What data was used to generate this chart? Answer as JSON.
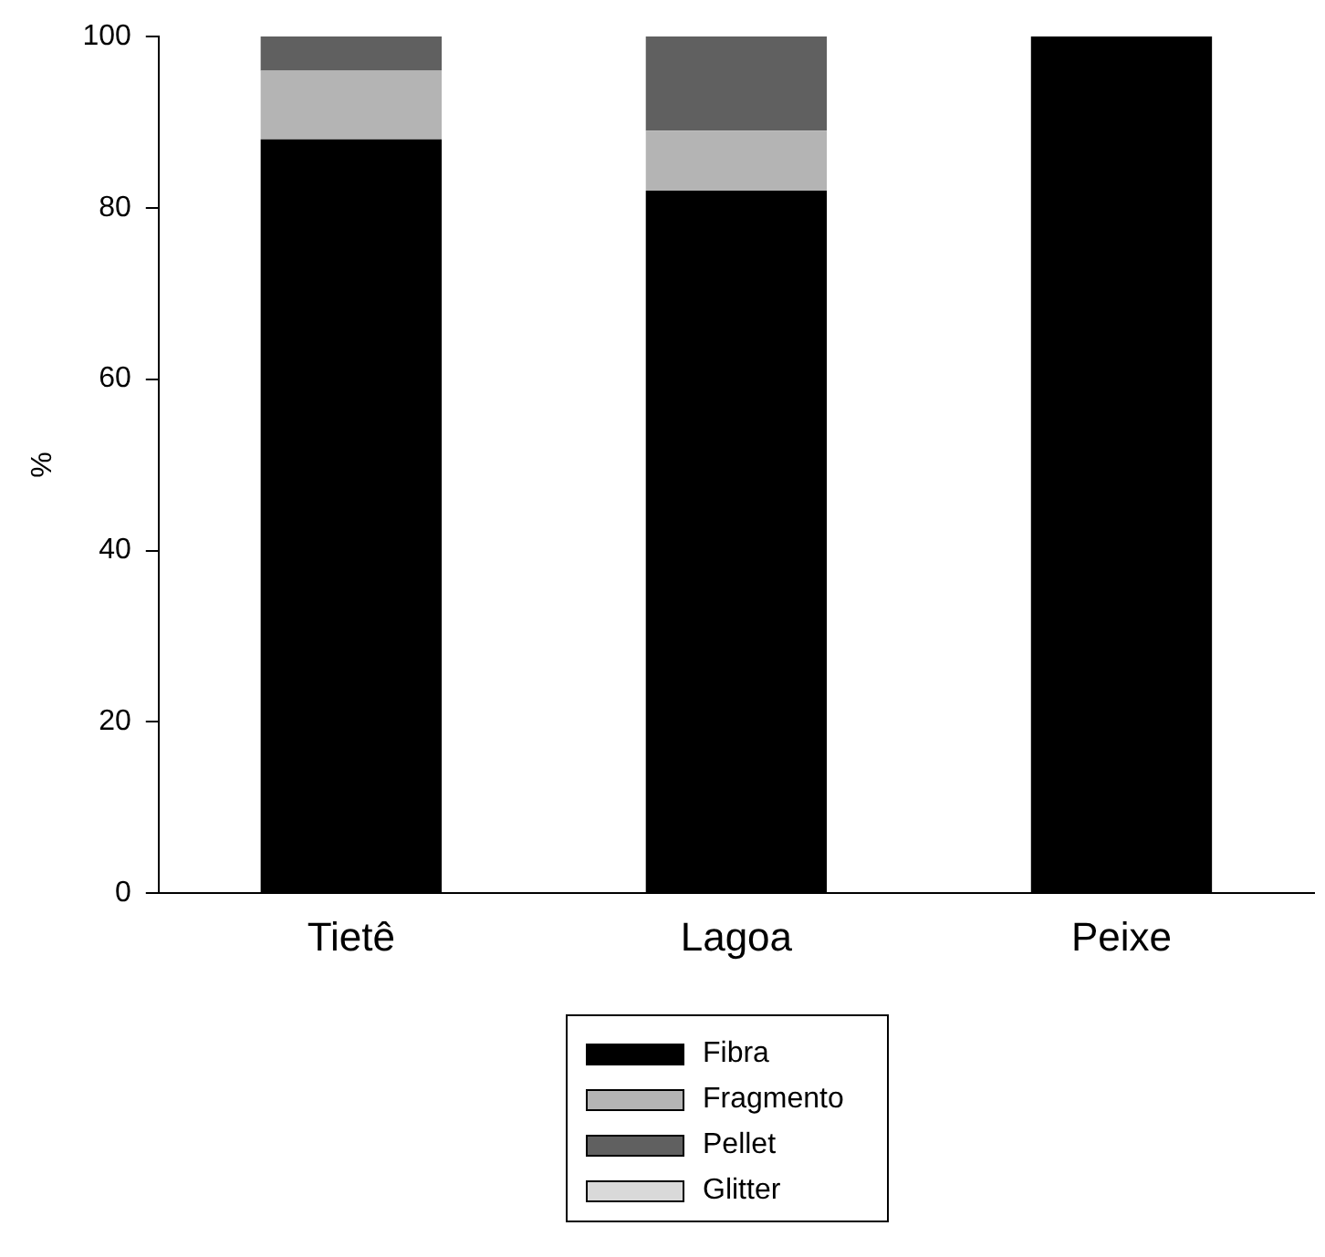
{
  "chart_data": {
    "type": "bar",
    "stacked": true,
    "ylabel": "%",
    "categories": [
      "Tietê",
      "Lagoa",
      "Peixe"
    ],
    "series": [
      {
        "name": "Fibra",
        "color": "#000000",
        "values": [
          88,
          82,
          100
        ]
      },
      {
        "name": "Fragmento",
        "color": "#b4b4b4",
        "values": [
          8,
          7,
          0
        ]
      },
      {
        "name": "Pellet",
        "color": "#606060",
        "values": [
          4,
          11,
          0
        ]
      },
      {
        "name": "Glitter",
        "color": "#d9d9d9",
        "values": [
          0,
          0,
          0
        ]
      }
    ],
    "ylim": [
      0,
      100
    ],
    "yticks": [
      0,
      20,
      40,
      60,
      80,
      100
    ],
    "grid": false,
    "legend": "bottom"
  }
}
